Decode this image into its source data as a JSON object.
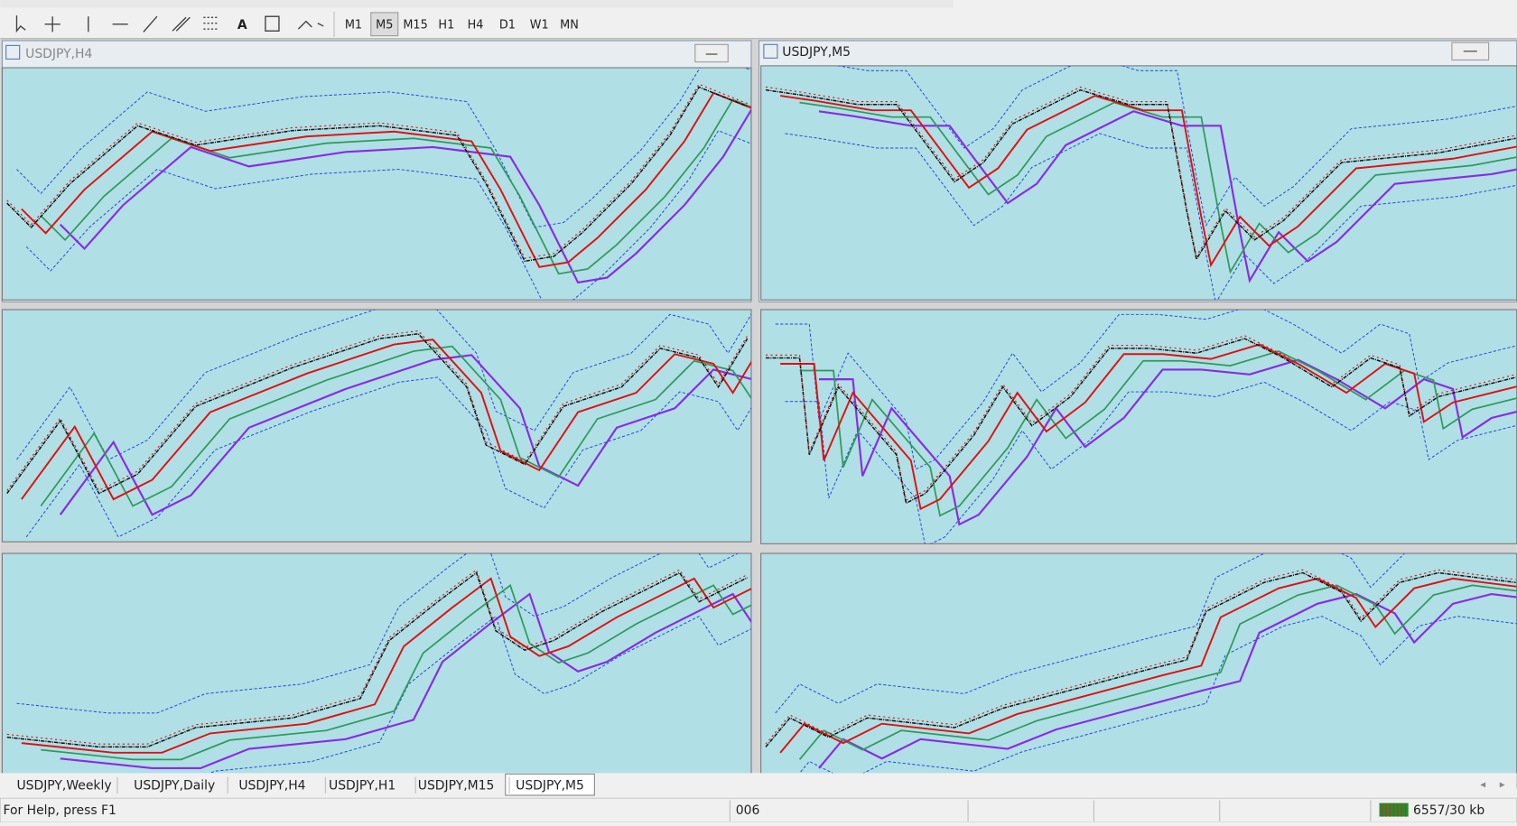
{
  "toolbar": {
    "timeframes": [
      "M1",
      "M5",
      "M15",
      "H1",
      "H4",
      "D1",
      "W1",
      "MN"
    ]
  },
  "windows": [
    {
      "title": "USDJPY,H4"
    },
    {
      "title": "USDJPY,M5"
    }
  ],
  "tabs": [
    "USDJPY,Weekly",
    "USDJPY,Daily",
    "USDJPY,H4",
    "USDJPY,H1",
    "USDJPY,M15",
    "USDJPY,M5"
  ],
  "status": {
    "help": "For Help, press F1",
    "middle": "006",
    "traffic": "6557/30 kb"
  }
}
